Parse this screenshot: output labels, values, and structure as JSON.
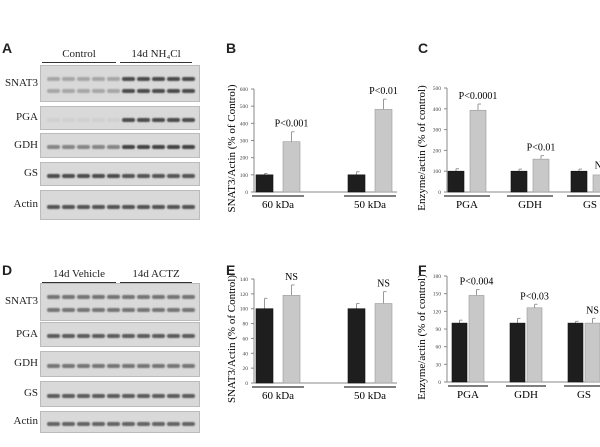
{
  "panels": {
    "A": "A",
    "B": "B",
    "C": "C",
    "D": "D",
    "E": "E",
    "F": "F"
  },
  "blotA": {
    "groups": [
      "Control",
      "14d NH₄Cl"
    ],
    "rows": [
      "SNAT3",
      "PGA",
      "GDH",
      "GS",
      "Actin"
    ]
  },
  "blotD": {
    "groups": [
      "14d Vehicle",
      "14d ACTZ"
    ],
    "rows": [
      "SNAT3",
      "PGA",
      "GDH",
      "GS",
      "Actin"
    ]
  },
  "colors": {
    "control": "#1e1e1e",
    "treated": "#c8c8c8"
  },
  "chart_data": [
    {
      "panel": "B",
      "type": "bar",
      "ylabel": "SNAT3/Actin (% of Control)",
      "categories": [
        "60 kDa",
        "50 kDa"
      ],
      "ylim": [
        0,
        600
      ],
      "yticks": [
        0,
        100,
        200,
        300,
        400,
        500,
        600
      ],
      "series": [
        {
          "values": [
            100,
            100
          ],
          "errors": [
            8,
            18
          ]
        },
        {
          "values": [
            293,
            481
          ],
          "errors": [
            58,
            60
          ]
        }
      ],
      "annotations": [
        "P<0.001",
        "P<0.01"
      ]
    },
    {
      "panel": "C",
      "type": "bar",
      "ylabel": "Enzyme/actin  (% of control)",
      "categories": [
        "PGA",
        "GDH",
        "GS"
      ],
      "ylim": [
        0,
        500
      ],
      "yticks": [
        0,
        100,
        200,
        300,
        400,
        500
      ],
      "series": [
        {
          "values": [
            100,
            100,
            100
          ],
          "errors": [
            12,
            10,
            10
          ]
        },
        {
          "values": [
            393,
            158,
            82
          ],
          "errors": [
            30,
            17,
            8
          ]
        }
      ],
      "annotations": [
        "P<0.0001",
        "P<0.01",
        "NS"
      ]
    },
    {
      "panel": "E",
      "type": "bar",
      "ylabel": "SNAT3/Actin (% of Control)",
      "categories": [
        "60 kDa",
        "50 kDa"
      ],
      "ylim": [
        0,
        140
      ],
      "yticks": [
        0,
        20,
        40,
        60,
        80,
        100,
        120,
        140
      ],
      "series": [
        {
          "values": [
            100,
            100
          ],
          "errors": [
            14,
            7
          ]
        },
        {
          "values": [
            118,
            107
          ],
          "errors": [
            14,
            16
          ]
        }
      ],
      "annotations": [
        "NS",
        "NS"
      ]
    },
    {
      "panel": "F",
      "type": "bar",
      "ylabel": "Enzyme/actin  (% of control)",
      "categories": [
        "PGA",
        "GDH",
        "GS"
      ],
      "ylim": [
        0,
        180
      ],
      "yticks": [
        0,
        30,
        60,
        90,
        120,
        150,
        180
      ],
      "series": [
        {
          "values": [
            100,
            100,
            100
          ],
          "errors": [
            5,
            8,
            3
          ]
        },
        {
          "values": [
            147,
            126,
            100
          ],
          "errors": [
            10,
            6,
            8
          ]
        }
      ],
      "annotations": [
        "P<0.004",
        "P<0.03",
        "NS"
      ]
    }
  ]
}
